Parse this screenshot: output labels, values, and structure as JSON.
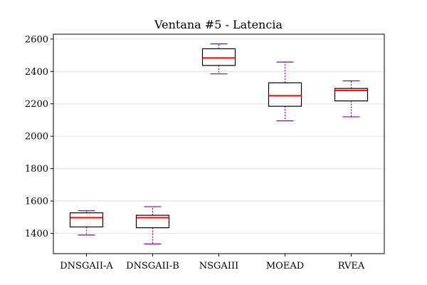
{
  "chart_data": {
    "type": "box",
    "title": "Ventana #5 - Latencia",
    "xlabel": "",
    "ylabel": "",
    "ylim": [
      1275,
      2630
    ],
    "yticks": [
      1400,
      1600,
      1800,
      2000,
      2200,
      2400,
      2600
    ],
    "grid": "horizontal",
    "colors": {
      "median": "#ff0000",
      "whisker": "#8b00a8",
      "box": "#000000",
      "grid": "#e6e6e6"
    },
    "categories": [
      "DNSGAII-A",
      "DNSGAII-B",
      "NSGAIII",
      "MOEAD",
      "RVEA"
    ],
    "boxes": [
      {
        "name": "DNSGAII-A",
        "min": 1390,
        "q1": 1440,
        "median": 1497,
        "q3": 1527,
        "max": 1540
      },
      {
        "name": "DNSGAII-B",
        "min": 1335,
        "q1": 1435,
        "median": 1497,
        "q3": 1512,
        "max": 1565
      },
      {
        "name": "NSGAIII",
        "min": 2385,
        "q1": 2437,
        "median": 2483,
        "q3": 2540,
        "max": 2570
      },
      {
        "name": "MOEAD",
        "min": 2095,
        "q1": 2185,
        "median": 2250,
        "q3": 2330,
        "max": 2458
      },
      {
        "name": "RVEA",
        "min": 2120,
        "q1": 2218,
        "median": 2283,
        "q3": 2295,
        "max": 2342
      }
    ]
  }
}
